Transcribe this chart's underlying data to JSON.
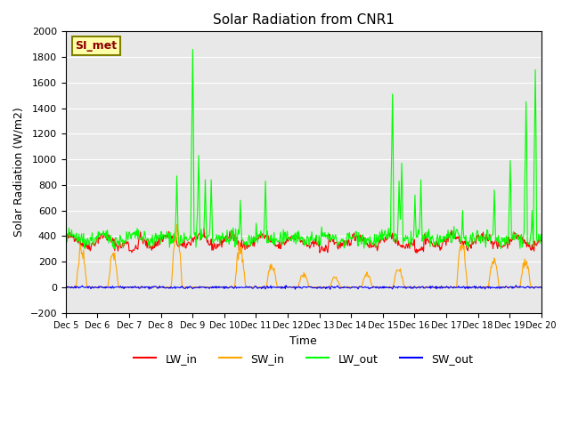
{
  "title": "Solar Radiation from CNR1",
  "xlabel": "Time",
  "ylabel": "Solar Radiation (W/m2)",
  "ylim": [
    -200,
    2000
  ],
  "station_label": "SI_met",
  "legend": [
    "LW_in",
    "SW_in",
    "LW_out",
    "SW_out"
  ],
  "line_colors": [
    "red",
    "orange",
    "lime",
    "blue"
  ],
  "bg_color": "#e8e8e8",
  "xtick_labels": [
    "Dec 5",
    "Dec 6",
    "Dec 7",
    "Dec 8",
    "Dec 9",
    "Dec 10",
    "Dec 11",
    "Dec 12",
    "Dec 13",
    "Dec 14",
    "Dec 15",
    "Dec 16",
    "Dec 17",
    "Dec 18",
    "Dec 19",
    "Dec 20"
  ],
  "n_days": 15,
  "pts_per_day": 48
}
